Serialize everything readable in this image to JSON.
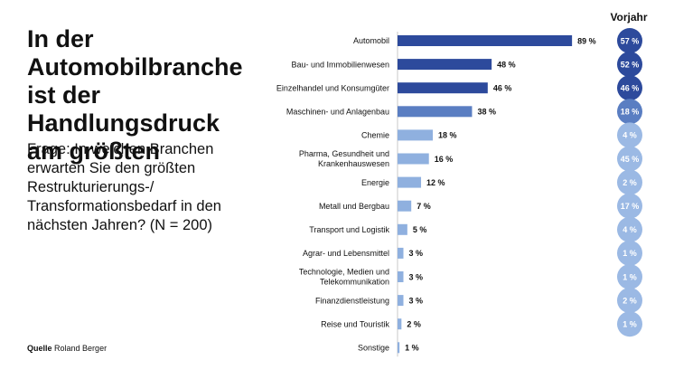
{
  "headline": "In der Automobilbranche ist der Handlungsdruck am größten",
  "question": "Frage: In welchen Branchen erwarten Sie den größten Restrukturierungs-/ Transformationsbedarf in den nächsten Jahren? (N = 200)",
  "source": {
    "prefix": "Quelle",
    "name": "Roland Berger"
  },
  "chart_data": {
    "type": "bar",
    "orientation": "horizontal",
    "unit": "%",
    "xlim": [
      0,
      100
    ],
    "categories": [
      [
        "Automobil"
      ],
      [
        "Bau- und Immobilienwesen"
      ],
      [
        "Einzelhandel und Konsumgüter"
      ],
      [
        "Maschinen- und Anlagenbau"
      ],
      [
        "Chemie"
      ],
      [
        "Pharma, Gesundheit und",
        "Krankenhauswesen"
      ],
      [
        "Energie"
      ],
      [
        "Metall und Bergbau"
      ],
      [
        "Transport und Logistik"
      ],
      [
        "Agrar- und Lebensmittel"
      ],
      [
        "Technologie, Medien und",
        "Telekommunikation"
      ],
      [
        "Finanzdienstleistung"
      ],
      [
        "Reise und Touristik"
      ],
      [
        "Sonstige"
      ]
    ],
    "values": [
      89,
      48,
      46,
      38,
      18,
      16,
      12,
      7,
      5,
      3,
      3,
      3,
      2,
      1
    ],
    "value_labels": [
      "89 %",
      "48 %",
      "46 %",
      "38 %",
      "18 %",
      "16 %",
      "12 %",
      "7 %",
      "5 %",
      "3 %",
      "3 %",
      "3 %",
      "2 %",
      "1 %"
    ],
    "previous_year": {
      "title": "Vorjahr",
      "values": [
        57,
        52,
        46,
        18,
        4,
        45,
        2,
        17,
        4,
        1,
        1,
        2,
        1,
        null
      ],
      "labels": [
        "57 %",
        "52 %",
        "46 %",
        "18 %",
        "4 %",
        "45 %",
        "2 %",
        "17 %",
        "4 %",
        "1 %",
        "1 %",
        "2 %",
        "1 %",
        ""
      ]
    },
    "colors": {
      "dark": "#2d4a9c",
      "medium": "#5a7ec2",
      "light": "#8fb0df",
      "vorjahr_dark": "#2d4a9c",
      "vorjahr_medium": "#5a7ec2",
      "vorjahr_light": "#9bb9e4"
    },
    "grid": false
  }
}
